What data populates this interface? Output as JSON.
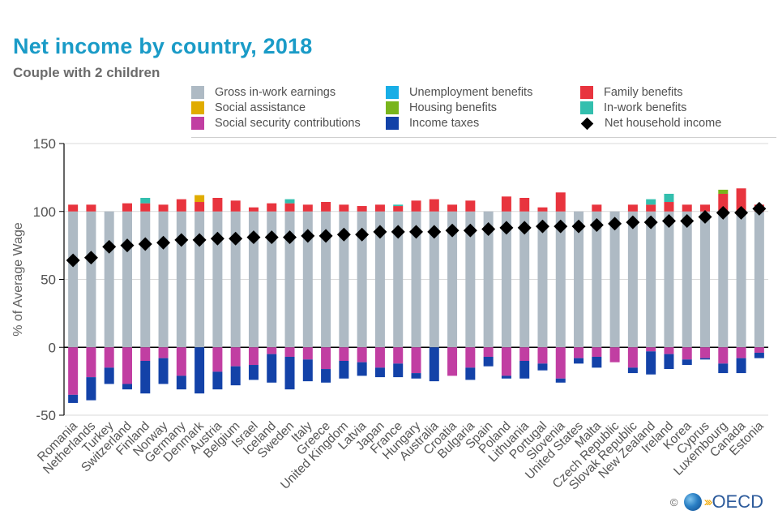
{
  "chart_data": {
    "type": "bar",
    "stacked": true,
    "title": "Net income by country, 2018",
    "subtitle": "Couple with 2 children",
    "ylabel": "% of Average Wage",
    "xlabel": "",
    "ylim": [
      -50,
      150
    ],
    "yticks": [
      -50,
      0,
      50,
      100,
      150
    ],
    "grid": true,
    "legend_position": "top-right",
    "categories": [
      "Romania",
      "Netherlands",
      "Turkey",
      "Switzerland",
      "Finland",
      "Norway",
      "Germany",
      "Denmark",
      "Austria",
      "Belgium",
      "Israel",
      "Iceland",
      "Sweden",
      "Italy",
      "Greece",
      "United Kingdom",
      "Latvia",
      "Japan",
      "France",
      "Hungary",
      "Australia",
      "Croatia",
      "Bulgaria",
      "Spain",
      "Poland",
      "Lithuania",
      "Portugal",
      "Slovenia",
      "United States",
      "Malta",
      "Czech Republic",
      "Slovak Republic",
      "New Zealand",
      "Ireland",
      "Korea",
      "Cyprus",
      "Luxembourg",
      "Canada",
      "Estonia"
    ],
    "series": [
      {
        "name": "Gross in-work earnings",
        "color": "#aebac4",
        "values": [
          100,
          100,
          100,
          100,
          100,
          100,
          100,
          100,
          100,
          100,
          100,
          100,
          100,
          100,
          100,
          100,
          100,
          100,
          100,
          100,
          100,
          100,
          100,
          100,
          100,
          100,
          100,
          100,
          100,
          100,
          100,
          100,
          100,
          100,
          100,
          100,
          100,
          100,
          100
        ]
      },
      {
        "name": "Unemployment benefits",
        "color": "#18aee6",
        "values": [
          0,
          0,
          0,
          0,
          0,
          0,
          0,
          0,
          0,
          0,
          0,
          0,
          0,
          0,
          0,
          0,
          0,
          0,
          0,
          0,
          0,
          0,
          0,
          0,
          0,
          0,
          0,
          0,
          0,
          0,
          0,
          0,
          0,
          0,
          0,
          0,
          0,
          0,
          0
        ]
      },
      {
        "name": "Family benefits",
        "color": "#e8343e",
        "values": [
          5,
          5,
          0,
          6,
          6,
          5,
          9,
          7,
          10,
          8,
          3,
          6,
          6,
          5,
          7,
          5,
          4,
          5,
          4,
          8,
          9,
          5,
          8,
          0,
          11,
          10,
          3,
          14,
          0,
          5,
          0,
          5,
          5,
          7,
          5,
          5,
          13,
          17,
          5
        ]
      },
      {
        "name": "Social assistance",
        "color": "#e0ac00",
        "values": [
          0,
          0,
          0,
          0,
          0,
          0,
          0,
          5,
          0,
          0,
          0,
          0,
          0,
          0,
          0,
          0,
          0,
          0,
          0,
          0,
          0,
          0,
          0,
          0,
          0,
          0,
          0,
          0,
          0,
          0,
          0,
          0,
          0,
          0,
          0,
          0,
          0,
          0,
          0
        ]
      },
      {
        "name": "Housing benefits",
        "color": "#79b51c",
        "values": [
          0,
          0,
          0,
          0,
          0,
          0,
          0,
          0,
          0,
          0,
          0,
          0,
          0,
          0,
          0,
          0,
          0,
          0,
          0,
          0,
          0,
          0,
          0,
          0,
          0,
          0,
          0,
          0,
          0,
          0,
          0,
          0,
          0,
          0,
          0,
          0,
          3,
          0,
          0
        ]
      },
      {
        "name": "In-work benefits",
        "color": "#33bfae",
        "values": [
          0,
          0,
          0,
          0,
          4,
          0,
          0,
          0,
          0,
          0,
          0,
          0,
          3,
          0,
          0,
          0,
          0,
          0,
          1,
          0,
          0,
          0,
          0,
          0,
          0,
          0,
          0,
          0,
          0,
          0,
          0,
          0,
          4,
          6,
          0,
          0,
          0,
          0,
          0
        ]
      },
      {
        "name": "Social security contributions",
        "color": "#c13ea2",
        "values": [
          -35,
          -22,
          -15,
          -27,
          -10,
          -8,
          -21,
          0,
          -18,
          -14,
          -13,
          -5,
          -7,
          -9,
          -16,
          -10,
          -11,
          -15,
          -12,
          -19,
          0,
          -21,
          -15,
          -7,
          -21,
          -10,
          -12,
          -23,
          -8,
          -7,
          -11,
          -15,
          -3,
          -5,
          -9,
          -8,
          -12,
          -8,
          -4
        ]
      },
      {
        "name": "Income taxes",
        "color": "#1342a8",
        "values": [
          -6,
          -17,
          -12,
          -4,
          -24,
          -19,
          -10,
          -34,
          -13,
          -14,
          -11,
          -21,
          -24,
          -16,
          -10,
          -13,
          -10,
          -7,
          -10,
          -4,
          -25,
          0,
          -9,
          -7,
          -2,
          -13,
          -5,
          -3,
          -4,
          -8,
          0,
          -4,
          -17,
          -11,
          -4,
          -1,
          -7,
          -11,
          -4
        ]
      }
    ],
    "markers": {
      "name": "Net household income",
      "color": "#000000",
      "values": [
        64,
        66,
        74,
        75,
        76,
        77,
        79,
        79,
        80,
        80,
        81,
        81,
        81,
        82,
        82,
        83,
        83,
        85,
        85,
        85,
        85,
        86,
        86,
        87,
        88,
        88,
        89,
        89,
        89,
        90,
        91,
        92,
        92,
        93,
        93,
        96,
        99,
        99,
        102
      ]
    }
  },
  "legend": [
    {
      "label": "Gross in-work earnings",
      "color": "#aebac4"
    },
    {
      "label": "Unemployment benefits",
      "color": "#18aee6"
    },
    {
      "label": "Family benefits",
      "color": "#e8343e"
    },
    {
      "label": "Social assistance",
      "color": "#e0ac00"
    },
    {
      "label": "Housing benefits",
      "color": "#79b51c"
    },
    {
      "label": "In-work benefits",
      "color": "#33bfae"
    },
    {
      "label": "Social security contributions",
      "color": "#c13ea2"
    },
    {
      "label": "Income taxes",
      "color": "#1342a8"
    },
    {
      "label": "Net household income",
      "color": "#000000"
    }
  ],
  "footer": {
    "copyright": "©",
    "brand": "OECD"
  }
}
